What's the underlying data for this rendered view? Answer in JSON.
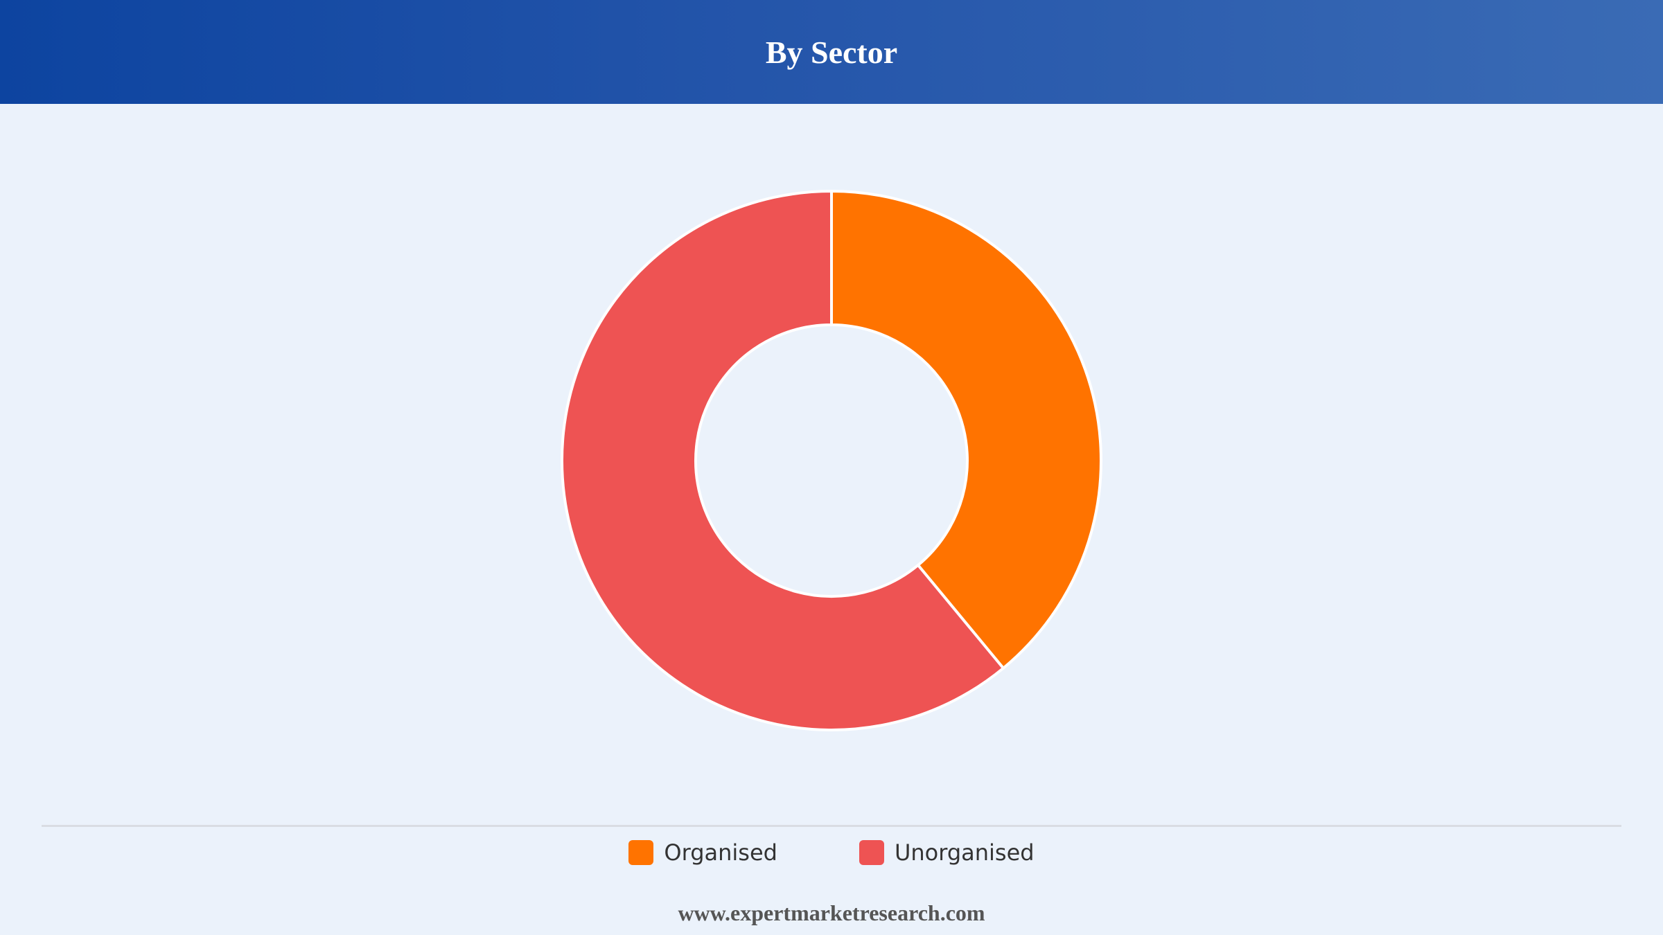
{
  "header": {
    "title": "By Sector"
  },
  "chart_data": {
    "type": "pie",
    "variant": "donut",
    "title": "By Sector",
    "categories": [
      "Organised",
      "Unorganised"
    ],
    "values": [
      39,
      61
    ],
    "colors": [
      "#ff7300",
      "#ee5353"
    ],
    "legend": "bottom"
  },
  "legend": {
    "items": [
      {
        "label": "Organised",
        "color": "#ff7300"
      },
      {
        "label": "Unorganised",
        "color": "#ee5353"
      }
    ]
  },
  "footer": {
    "website": "www.expertmarketresearch.com"
  }
}
